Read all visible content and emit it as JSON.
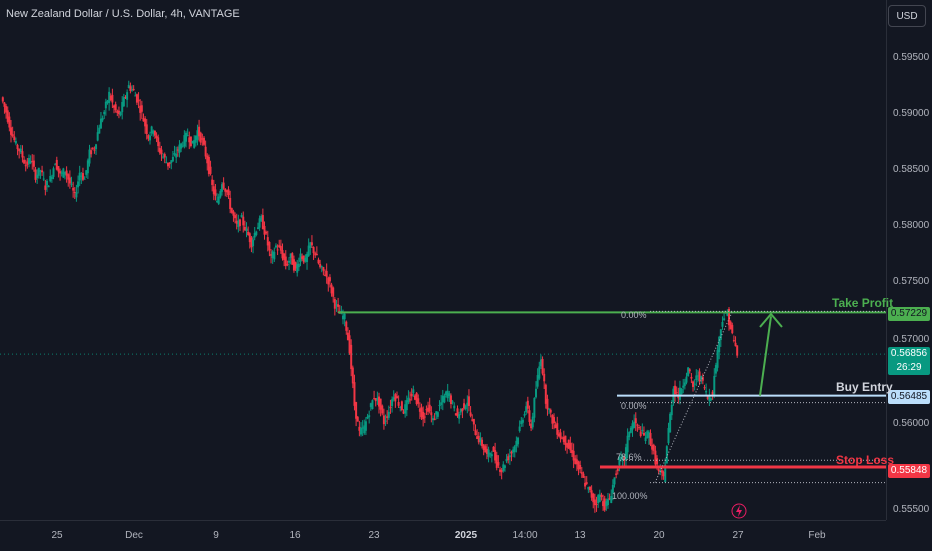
{
  "header": {
    "symbol_title": "New Zealand Dollar / U.S. Dollar, 4h, VANTAGE",
    "currency": "USD"
  },
  "price_scale": {
    "ticks": [
      "0.59500",
      "0.59000",
      "0.58500",
      "0.58000",
      "0.57500",
      "0.57000",
      "0.56000",
      "0.55500"
    ]
  },
  "time_scale": {
    "labels": [
      "25",
      "Dec",
      "9",
      "16",
      "23",
      "2025",
      "14:00",
      "13",
      "20",
      "27",
      "Feb"
    ]
  },
  "levels": {
    "take_profit": {
      "label": "Take Profit",
      "price": "0.57229",
      "color": "#4caf50"
    },
    "buy_entry": {
      "label": "Buy Entry",
      "price": "0.56485",
      "color": "#bbdefb"
    },
    "stop_loss": {
      "label": "Stop Loss",
      "price": "0.55848",
      "color": "#f23645"
    },
    "current": {
      "price": "0.56856",
      "countdown": "26:29",
      "color": "#089981"
    }
  },
  "fibonacci": {
    "labels": [
      "0.00%",
      "0.00%",
      "78.6%",
      "100.00%"
    ]
  },
  "colors": {
    "up": "#089981",
    "down": "#f23645",
    "background": "#131722"
  },
  "chart_data": {
    "type": "candlestick",
    "title": "New Zealand Dollar / U.S. Dollar, 4h, VANTAGE",
    "ylim": [
      0.5545,
      0.5995
    ],
    "x_ticks": [
      "25",
      "Dec",
      "9",
      "16",
      "23",
      "2025",
      "14:00",
      "13",
      "20",
      "27",
      "Feb"
    ],
    "series": [
      {
        "ohlc_path": [
          0.5915,
          0.5902,
          0.5885,
          0.5872,
          0.5866,
          0.5854,
          0.586,
          0.5845,
          0.585,
          0.5835,
          0.5842,
          0.5858,
          0.5845,
          0.585,
          0.5838,
          0.5826,
          0.5848,
          0.5842,
          0.5865,
          0.587,
          0.589,
          0.5902,
          0.5918,
          0.5905,
          0.5898,
          0.5912,
          0.5925,
          0.592,
          0.591,
          0.5895,
          0.588,
          0.5888,
          0.587,
          0.5862,
          0.5855,
          0.586,
          0.5868,
          0.5875,
          0.5882,
          0.5872,
          0.5885,
          0.5875,
          0.5858,
          0.5835,
          0.582,
          0.584,
          0.583,
          0.5812,
          0.58,
          0.5806,
          0.5795,
          0.5785,
          0.5798,
          0.5806,
          0.579,
          0.577,
          0.5782,
          0.5778,
          0.5765,
          0.5772,
          0.576,
          0.5775,
          0.5768,
          0.5784,
          0.5775,
          0.5762,
          0.5758,
          0.5748,
          0.573,
          0.5722,
          0.5718,
          0.569,
          0.564,
          0.5615,
          0.562,
          0.5635,
          0.5648,
          0.5642,
          0.5625,
          0.5635,
          0.565,
          0.5642,
          0.5635,
          0.5644,
          0.5652,
          0.564,
          0.563,
          0.5638,
          0.5626,
          0.5636,
          0.5645,
          0.5652,
          0.564,
          0.563,
          0.5638,
          0.5644,
          0.5624,
          0.5612,
          0.5605,
          0.5595,
          0.56,
          0.5588,
          0.5582,
          0.5592,
          0.5598,
          0.5608,
          0.5625,
          0.564,
          0.562,
          0.5655,
          0.5684,
          0.5645,
          0.563,
          0.562,
          0.5612,
          0.5608,
          0.56,
          0.559,
          0.558,
          0.557,
          0.5562,
          0.5552,
          0.556,
          0.555,
          0.5556,
          0.5575,
          0.559,
          0.5592,
          0.5618,
          0.5625,
          0.5618,
          0.5612,
          0.5614,
          0.5596,
          0.558,
          0.5575,
          0.5618,
          0.5656,
          0.5648,
          0.566,
          0.5672,
          0.5656,
          0.5668,
          0.566,
          0.5646,
          0.5652,
          0.569,
          0.5718,
          0.5722,
          0.5702,
          0.5686
        ]
      }
    ],
    "take_profit": 0.57229,
    "buy_entry": 0.56485,
    "stop_loss": 0.55848,
    "current_price": 0.56856,
    "fib_levels": [
      0.57229,
      0.56485,
      0.55908,
      0.55709
    ],
    "annotations": [
      "Take Profit",
      "Buy Entry",
      "Stop Loss"
    ]
  }
}
